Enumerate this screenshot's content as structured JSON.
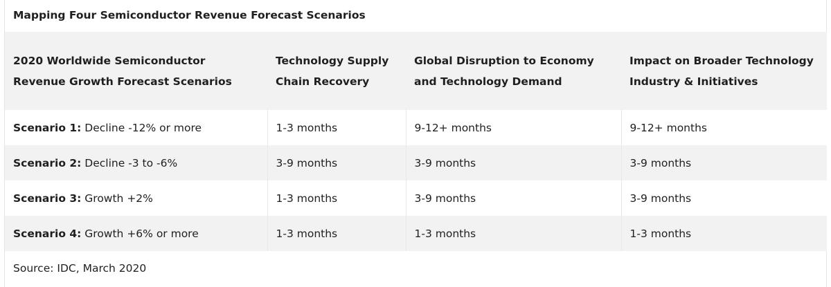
{
  "title": "Mapping Four Semiconductor Revenue Forecast Scenarios",
  "headers": [
    "2020 Worldwide Semiconductor Revenue Growth Forecast Scenarios",
    "Technology Supply Chain Recovery",
    "Global Disruption to Economy and Technology Demand",
    "Impact on Broader Technology Industry & Initiatives"
  ],
  "rows": [
    {
      "label": "Scenario 1:",
      "desc": "Decline -12% or more",
      "supply": "1-3 months",
      "disruption": "9-12+ months",
      "impact": "9-12+ months"
    },
    {
      "label": "Scenario 2:",
      "desc": "Decline -3 to -6%",
      "supply": "3-9 months",
      "disruption": "3-9 months",
      "impact": "3-9 months"
    },
    {
      "label": "Scenario 3:",
      "desc": "Growth +2%",
      "supply": "1-3 months",
      "disruption": "3-9 months",
      "impact": "3-9 months"
    },
    {
      "label": "Scenario 4:",
      "desc": "Growth +6% or more",
      "supply": "1-3 months",
      "disruption": "1-3 months",
      "impact": "1-3 months"
    }
  ],
  "source": "Source: IDC, March 2020",
  "colors": {
    "header_bg": "#f2f2f2",
    "stripe_bg": "#f2f2f2",
    "text": "#1f1f1f"
  }
}
